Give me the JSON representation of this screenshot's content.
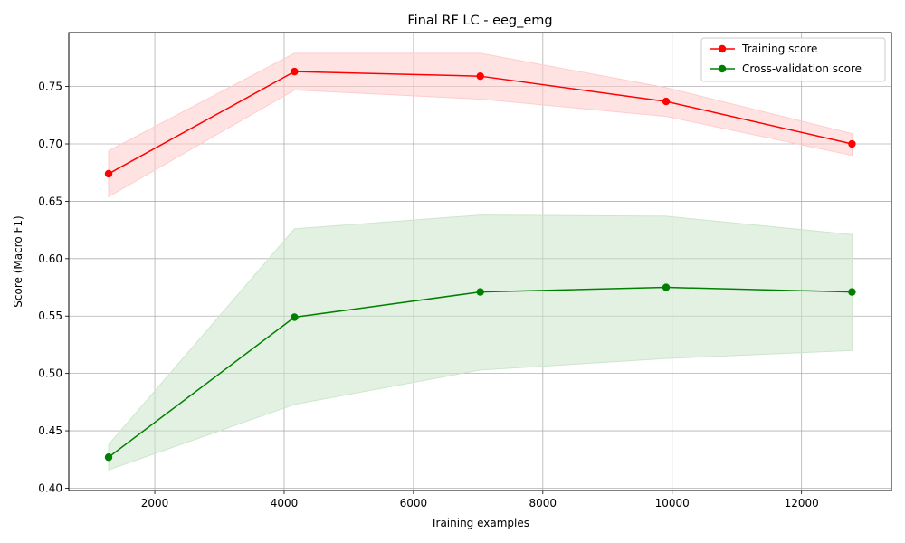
{
  "chart_data": {
    "type": "line",
    "title": "Final RF LC - eeg_emg",
    "xlabel": "Training examples",
    "ylabel": "Score (Macro F1)",
    "xlim": [
      670,
      13390
    ],
    "ylim": [
      0.398,
      0.797
    ],
    "xticks": [
      2000,
      4000,
      6000,
      8000,
      10000,
      12000
    ],
    "yticks": [
      0.4,
      0.45,
      0.5,
      0.55,
      0.6,
      0.65,
      0.7,
      0.75
    ],
    "grid": true,
    "legend_position": "top-right",
    "x": [
      1286,
      4160,
      7033,
      9906,
      12780
    ],
    "series": [
      {
        "name": "Training score",
        "color": "#ff0000",
        "band_color": "#ffcccc",
        "values": [
          0.674,
          0.763,
          0.759,
          0.737,
          0.7
        ],
        "band_upper": [
          0.694,
          0.779,
          0.779,
          0.749,
          0.709
        ],
        "band_lower": [
          0.654,
          0.747,
          0.739,
          0.724,
          0.69
        ]
      },
      {
        "name": "Cross-validation score",
        "color": "#008000",
        "band_color": "#cce6cc",
        "values": [
          0.427,
          0.549,
          0.571,
          0.575,
          0.571
        ],
        "band_upper": [
          0.438,
          0.626,
          0.638,
          0.637,
          0.621
        ],
        "band_lower": [
          0.416,
          0.473,
          0.503,
          0.513,
          0.52
        ]
      }
    ]
  }
}
